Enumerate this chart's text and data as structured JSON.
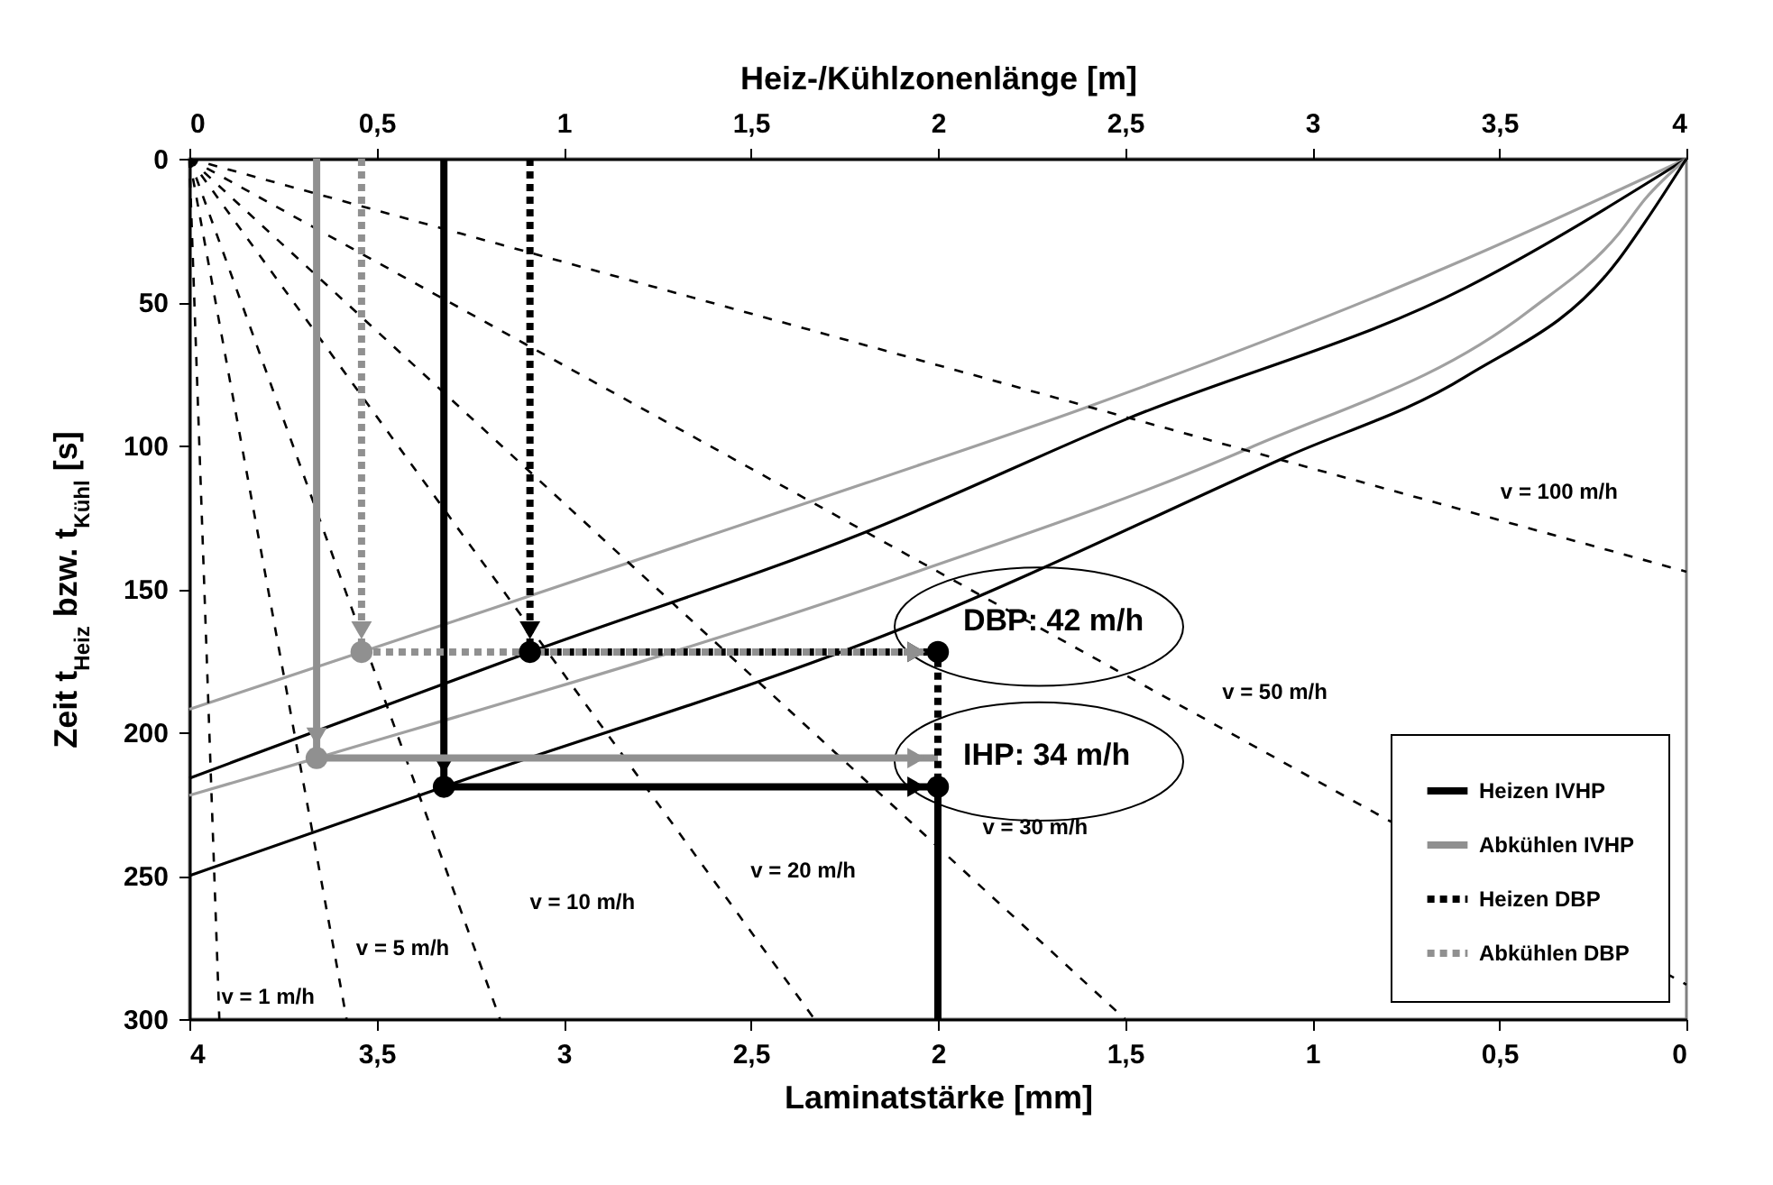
{
  "chart_data": {
    "type": "line",
    "xlabel": "Laminatstärke [mm]",
    "x2label": "Heiz-/Kühlzonenlänge [m]",
    "ylabel": "Zeit t$_{Heiz}$ bzw. t$_{Kühl}$ [s]",
    "xlim": [
      4,
      0
    ],
    "xticks": [
      4,
      {
        "value": 3.5,
        "label": "3,5"
      },
      3,
      {
        "value": 2.5,
        "label": "2,5"
      },
      2,
      {
        "value": 1.5,
        "label": "1,5"
      },
      1,
      {
        "value": 0.5,
        "label": "0,5"
      },
      0
    ],
    "x2lim": [
      0,
      4
    ],
    "x2ticks": [
      0,
      {
        "value": 0.5,
        "label": "0,5"
      },
      1,
      {
        "value": 1.5,
        "label": "1,5"
      },
      2,
      {
        "value": 2.5,
        "label": "2,5"
      },
      3,
      {
        "value": 3.5,
        "label": "3,5"
      },
      4
    ],
    "ylim": [
      300,
      0
    ],
    "yticks": [
      0,
      50,
      100,
      150,
      200,
      250,
      300
    ],
    "legend": "bottom right",
    "series": [
      {
        "color": "#a0a0a0",
        "x": [
          0,
          0.59,
          1.61,
          2.19,
          3.54,
          4
        ],
        "values": [
          0,
          35,
          87,
          113,
          172,
          192
        ]
      },
      {
        "color": "#000000",
        "x": [
          0,
          0.59,
          1.5,
          2.19,
          3.09,
          4
        ],
        "values": [
          0,
          45,
          91,
          130,
          172,
          216
        ]
      },
      {
        "color": "#a0a0a0",
        "x": [
          0,
          0.11,
          0.18,
          0.42,
          1.17,
          2.1,
          3.66,
          4
        ],
        "values": [
          0,
          14,
          26,
          53,
          101,
          146,
          209,
          222
        ]
      },
      {
        "color": "#000000",
        "x": [
          0,
          0.11,
          0.18,
          0.59,
          1.07,
          2.1,
          3.32,
          4
        ],
        "values": [
          0,
          22,
          35,
          76,
          104,
          164,
          219,
          250
        ]
      },
      {
        "name": "v = 1 m/h",
        "axis": "x2",
        "color": "#000000",
        "line_style": "dashed",
        "x": [
          0,
          0.08
        ],
        "values": [
          0,
          300
        ]
      },
      {
        "name": "v = 5 m/h",
        "axis": "x2",
        "color": "#000000",
        "line_style": "dashed",
        "x": [
          0,
          0.42
        ],
        "values": [
          0,
          300
        ]
      },
      {
        "name": "v = 10 m/h",
        "axis": "x2",
        "color": "#000000",
        "line_style": "dashed",
        "x": [
          0,
          0.83
        ],
        "values": [
          0,
          300
        ]
      },
      {
        "name": "v = 20 m/h",
        "axis": "x2",
        "color": "#000000",
        "line_style": "dashed",
        "x": [
          0,
          1.67
        ],
        "values": [
          0,
          300
        ]
      },
      {
        "name": "v = 30 m/h",
        "axis": "x2",
        "color": "#000000",
        "line_style": "dashed",
        "x": [
          0,
          2.5
        ],
        "values": [
          0,
          300
        ]
      },
      {
        "name": "v = 50 m/h",
        "axis": "x2",
        "color": "#000000",
        "line_style": "dashed",
        "x": [
          0,
          4
        ],
        "values": [
          0,
          288
        ]
      },
      {
        "name": "v = 100 m/h",
        "axis": "x2",
        "color": "#000000",
        "line_style": "dashed",
        "x": [
          0,
          4
        ],
        "values": [
          0,
          144
        ]
      },
      {
        "name": "Heizen IVHP",
        "axis": "x2",
        "color": "#000000",
        "line_style": "solid",
        "x": [
          0.68,
          0.68,
          2,
          2
        ],
        "values": [
          0,
          219,
          219,
          300
        ]
      },
      {
        "name": "Abkühlen IVHP",
        "axis": "x2",
        "color": "#909090",
        "line_style": "solid",
        "x": [
          0.34,
          0.34,
          2
        ],
        "values": [
          0,
          209,
          209
        ]
      },
      {
        "name": "Heizen DBP",
        "axis": "x2",
        "color": "#000000",
        "line_style": "dotted",
        "x": [
          0.91,
          0.91,
          2,
          2
        ],
        "values": [
          0,
          172,
          172,
          219
        ]
      },
      {
        "name": "Abkühlen DBP",
        "axis": "x2",
        "color": "#909090",
        "line_style": "dotted",
        "x": [
          0.46,
          0.46,
          2
        ],
        "values": [
          0,
          172,
          172
        ]
      },
      {
        "type": "scatter",
        "axis": "x2",
        "color": "#909090",
        "marker": "circle",
        "x": [
          0.34,
          0.46
        ],
        "values": [
          209,
          172
        ]
      },
      {
        "type": "scatter",
        "axis": "x2",
        "color": "#000000",
        "marker": "circle",
        "x": [
          0.68,
          2,
          0.91,
          2
        ],
        "values": [
          219,
          219,
          172,
          172
        ]
      }
    ],
    "annotations": [
      {
        "text": "DBP: 42 m/h",
        "x": 2,
        "y": 172
      },
      {
        "text": "IHP: 34 m/h",
        "x": 2,
        "y": 219
      }
    ]
  }
}
